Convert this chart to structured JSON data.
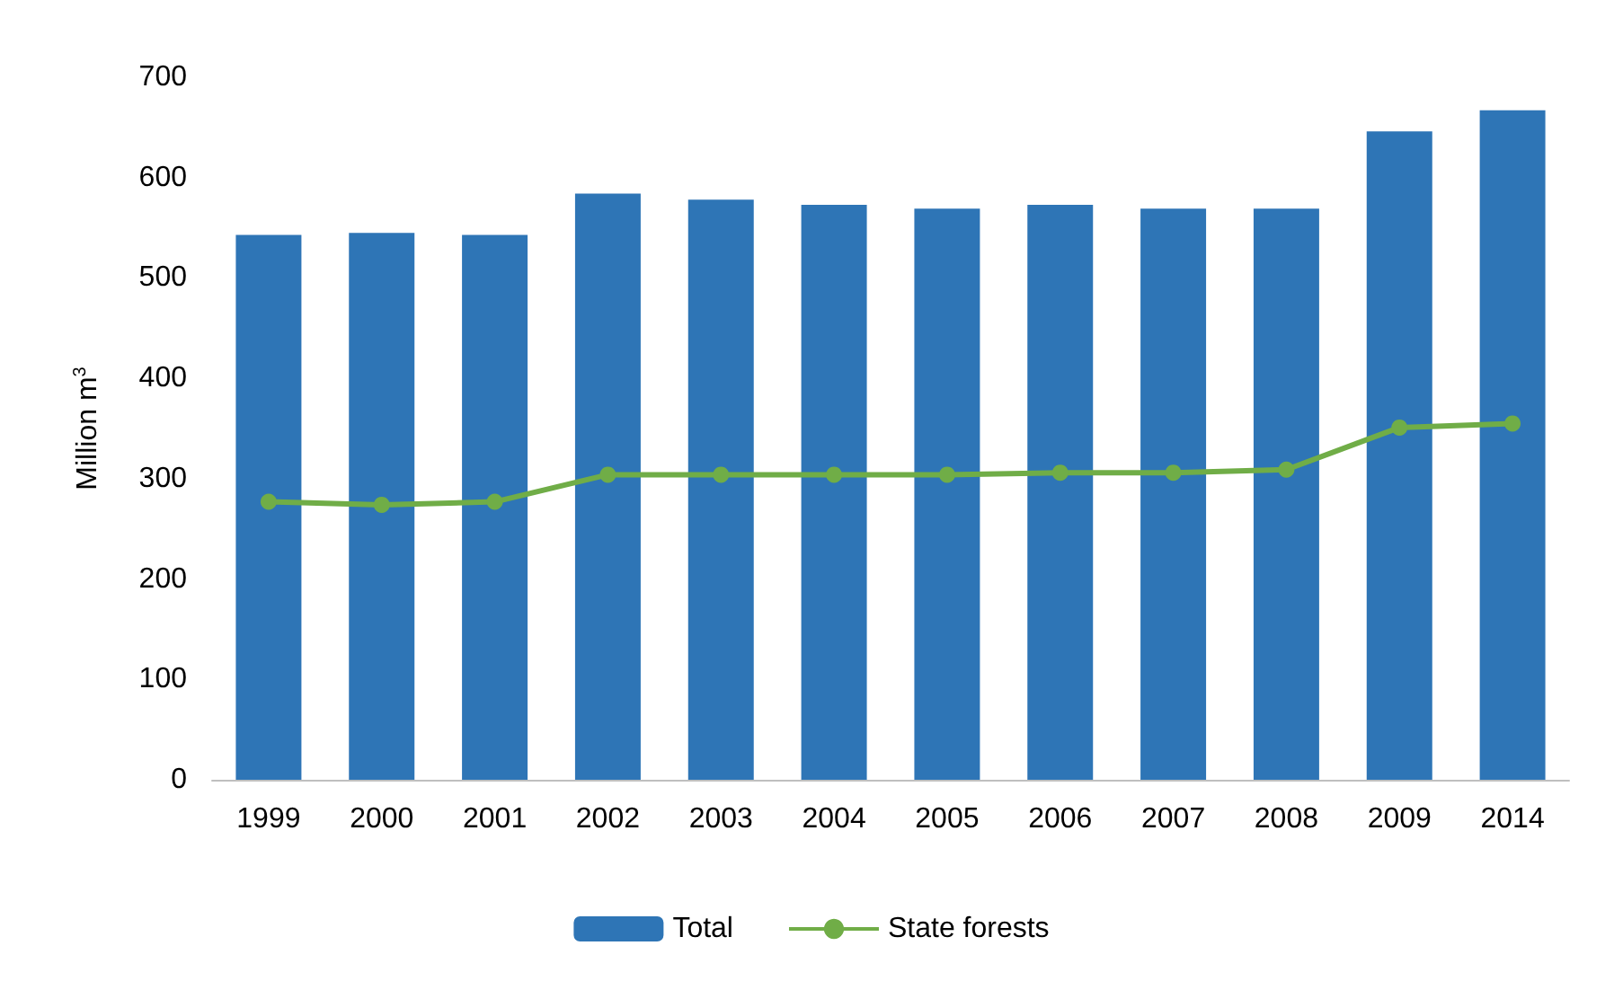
{
  "chart_data": {
    "type": "bar",
    "ylabel": "Million m$^{3}$",
    "categories": [
      "1999",
      "2000",
      "2001",
      "2002",
      "2003",
      "2004",
      "2005",
      "2006",
      "2007",
      "2008",
      "2009",
      "2014"
    ],
    "series": [
      {
        "name": "Total",
        "type": "bar",
        "color": "#2e75b6",
        "values": [
          543,
          545,
          543,
          584,
          578,
          573,
          569,
          573,
          569,
          569,
          646,
          667
        ]
      },
      {
        "name": "State forests",
        "type": "line",
        "color": "#70ad47",
        "marker": "circle",
        "values": [
          277,
          274,
          277,
          304,
          304,
          304,
          304,
          306,
          306,
          309,
          351,
          355
        ]
      }
    ],
    "ylim": [
      0,
      700
    ],
    "yticks": [
      0,
      100,
      200,
      300,
      400,
      500,
      600,
      700
    ],
    "grid": false,
    "legend": "bottom"
  }
}
